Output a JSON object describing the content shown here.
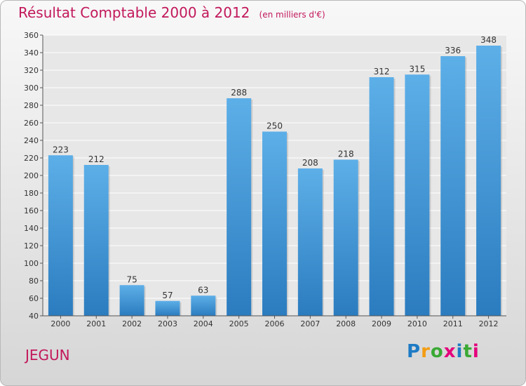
{
  "title": "Résultat Comptable 2000 à 2012",
  "subtitle": "(en milliers d'€)",
  "commune": "JEGUN",
  "brand": {
    "letters": [
      "P",
      "r",
      "o",
      "x",
      "i",
      "t",
      "i"
    ],
    "colors": [
      "#1e7bc4",
      "#f39c12",
      "#3aa935",
      "#e4007c",
      "#1e7bc4",
      "#3aa935",
      "#e4007c"
    ]
  },
  "colors": {
    "bar_top": "#5dafe8",
    "bar_bottom": "#2b7cbf",
    "accent": "#c2185b"
  },
  "chart_data": {
    "type": "bar",
    "title": "Résultat Comptable 2000 à 2012",
    "subtitle": "(en milliers d'€)",
    "xlabel": "",
    "ylabel": "",
    "categories": [
      "2000",
      "2001",
      "2002",
      "2003",
      "2004",
      "2005",
      "2006",
      "2007",
      "2008",
      "2009",
      "2010",
      "2011",
      "2012"
    ],
    "values": [
      223,
      212,
      75,
      57,
      63,
      288,
      250,
      208,
      218,
      312,
      315,
      336,
      348
    ],
    "ylim": [
      40,
      360
    ],
    "yticks": [
      40,
      60,
      80,
      100,
      120,
      140,
      160,
      180,
      200,
      220,
      240,
      260,
      280,
      300,
      320,
      340,
      360
    ],
    "grid": true,
    "legend": "none"
  }
}
